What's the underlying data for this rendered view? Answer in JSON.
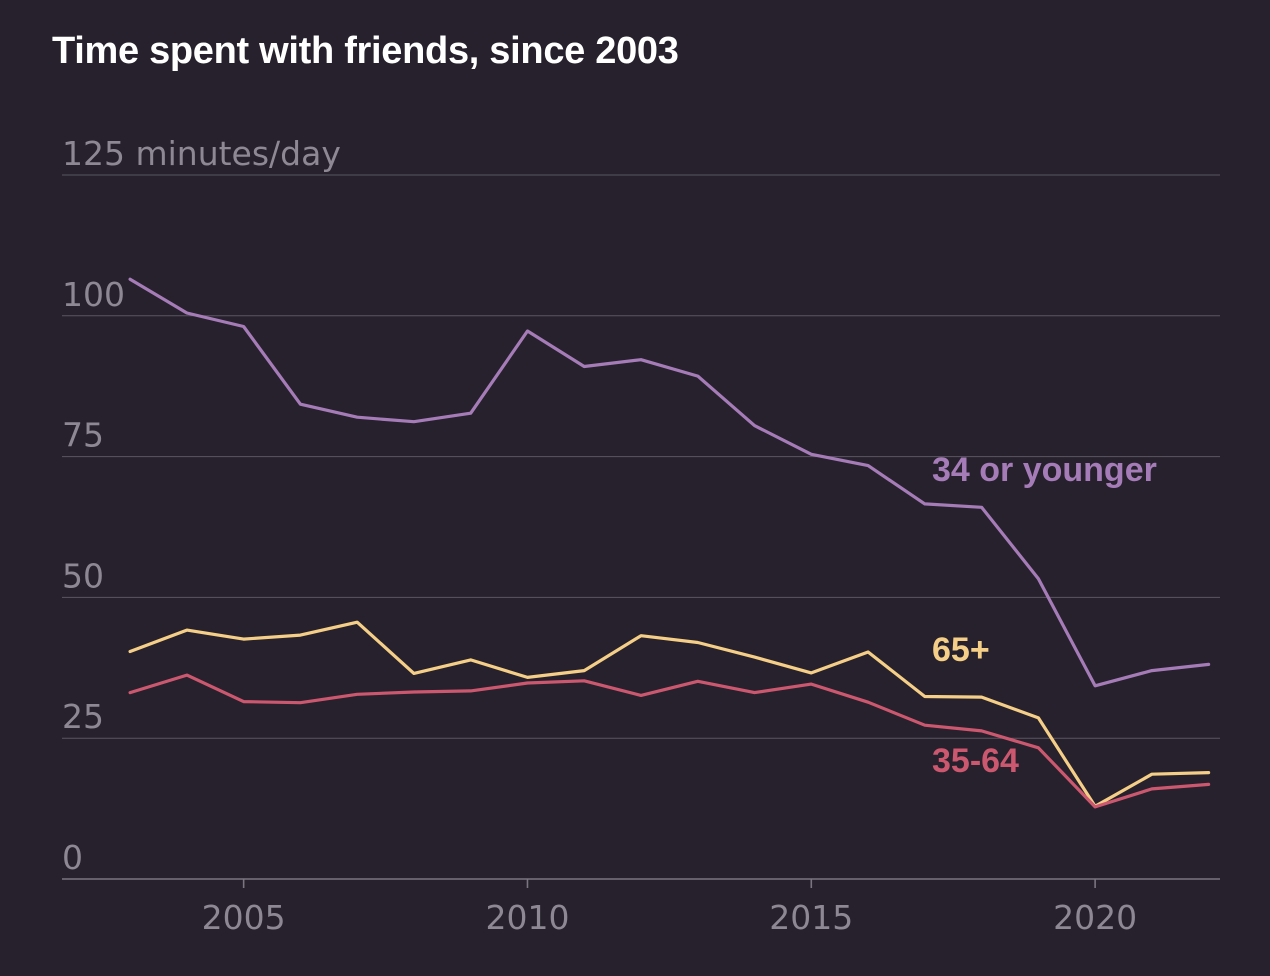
{
  "title": "Time spent with friends, since 2003",
  "colors": {
    "background": "#26212c",
    "grid": "#5b5662",
    "tick_text": "#8d8894",
    "title": "#ffffff"
  },
  "chart_data": {
    "type": "line",
    "title": "Time spent with friends, since 2003",
    "xlabel": "",
    "ylabel": "",
    "xlim": [
      2001.8,
      2022.2
    ],
    "ylim": [
      0,
      125
    ],
    "y_ticks": [
      0,
      25,
      50,
      75,
      100,
      125
    ],
    "y_tick_labels": [
      "0",
      "25",
      "50",
      "75",
      "100",
      "125 minutes/day"
    ],
    "x_ticks": [
      2005,
      2010,
      2015,
      2020
    ],
    "x_tick_labels": [
      "2005",
      "2010",
      "2015",
      "2020"
    ],
    "grid": true,
    "legend": "direct labels at right of lines",
    "x": [
      2003,
      2004,
      2005,
      2006,
      2007,
      2008,
      2009,
      2010,
      2011,
      2012,
      2013,
      2014,
      2015,
      2016,
      2017,
      2018,
      2019,
      2020,
      2021,
      2022
    ],
    "series": [
      {
        "name": "34 or younger",
        "color": "#a67cb8",
        "values": [
          106.5,
          100.5,
          98.1,
          84.3,
          82,
          81.2,
          82.7,
          97.3,
          91,
          92.2,
          89.3,
          80.5,
          75.4,
          73.4,
          66.6,
          66,
          53.3,
          34.3,
          37,
          38.1
        ]
      },
      {
        "name": "65+",
        "color": "#f5cf87",
        "values": [
          40.4,
          44.2,
          42.6,
          43.3,
          45.6,
          36.5,
          38.9,
          35.8,
          37,
          43.2,
          42,
          39.4,
          36.6,
          40.3,
          32.4,
          32.3,
          28.6,
          12.9,
          18.6,
          18.9
        ]
      },
      {
        "name": "35-64",
        "color": "#cc5870",
        "values": [
          33.1,
          36.2,
          31.5,
          31.3,
          32.8,
          33.2,
          33.4,
          34.8,
          35.2,
          32.6,
          35.1,
          33.1,
          34.6,
          31.4,
          27.3,
          26.3,
          23.3,
          12.8,
          16,
          16.8
        ]
      }
    ]
  }
}
